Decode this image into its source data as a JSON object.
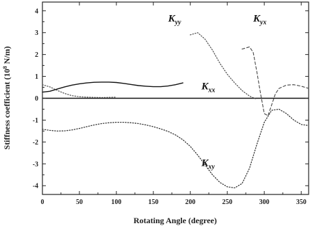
{
  "chart_data": {
    "type": "line",
    "title": "",
    "xlabel": "Rotating Angle (degree)",
    "ylabel_main": "Stiffness coefficient (10",
    "ylabel_exp": "8",
    "ylabel_unit": " N/m)",
    "xlim": [
      0,
      360
    ],
    "ylim": [
      -4.4,
      4.4
    ],
    "xticks": [
      0,
      50,
      100,
      150,
      200,
      250,
      300,
      350
    ],
    "yticks": [
      -4,
      -3,
      -2,
      -1,
      0,
      1,
      2,
      3,
      4
    ],
    "grid": false,
    "legend": "none",
    "series": [
      {
        "label_main": "K",
        "label_sub": "xx",
        "label_at": [
          215,
          0.4
        ],
        "style": "solid",
        "color": "#111111",
        "x": [
          0,
          10,
          20,
          30,
          40,
          50,
          60,
          70,
          80,
          90,
          100,
          110,
          120,
          130,
          140,
          150,
          160,
          170,
          180,
          190,
          200,
          210,
          220,
          230,
          240,
          250,
          260,
          270,
          280,
          290,
          300,
          310,
          320,
          330,
          340,
          350,
          360
        ],
        "y": [
          0.28,
          0.32,
          0.42,
          0.52,
          0.6,
          0.66,
          0.7,
          0.73,
          0.74,
          0.74,
          0.72,
          0.68,
          0.63,
          0.58,
          0.55,
          0.53,
          0.53,
          0.56,
          0.62,
          0.7,
          null,
          null,
          null,
          null,
          null,
          null,
          null,
          null,
          null,
          null,
          null,
          null,
          null,
          null,
          null,
          null,
          null
        ]
      },
      {
        "label_main": "K",
        "label_sub": "yy",
        "label_at": [
          170,
          3.5
        ],
        "style": "dotted",
        "color": "#555555",
        "x": [
          0,
          10,
          20,
          30,
          40,
          50,
          60,
          70,
          80,
          90,
          100,
          110,
          120,
          130,
          140,
          150,
          160,
          170,
          180,
          190,
          200,
          210,
          220,
          230,
          240,
          250,
          260,
          270,
          280,
          290,
          300,
          310,
          320,
          330,
          340,
          350,
          360
        ],
        "y": [
          0.62,
          0.52,
          0.36,
          0.22,
          0.12,
          0.07,
          0.05,
          0.04,
          0.03,
          0.04,
          0.05,
          null,
          null,
          null,
          null,
          null,
          null,
          null,
          null,
          null,
          2.9,
          3.0,
          2.7,
          2.2,
          1.6,
          1.1,
          0.7,
          0.35,
          0.1,
          -0.05,
          null,
          null,
          null,
          null,
          null,
          null,
          null
        ]
      },
      {
        "label_main": "K",
        "label_sub": "yx",
        "label_at": [
          285,
          3.5
        ],
        "style": "dashed",
        "color": "#444444",
        "x": [
          0,
          10,
          20,
          30,
          40,
          50,
          60,
          70,
          80,
          90,
          100,
          110,
          120,
          130,
          140,
          150,
          160,
          170,
          180,
          190,
          200,
          210,
          220,
          230,
          240,
          250,
          260,
          270,
          280,
          285,
          290,
          295,
          300,
          305,
          310,
          315,
          320,
          330,
          340,
          350,
          360
        ],
        "y": [
          null,
          null,
          null,
          null,
          null,
          null,
          null,
          null,
          null,
          null,
          null,
          null,
          null,
          null,
          null,
          null,
          null,
          null,
          null,
          null,
          null,
          null,
          null,
          null,
          null,
          null,
          null,
          2.25,
          2.35,
          2.1,
          1.2,
          0.2,
          -0.7,
          -0.8,
          -0.3,
          0.2,
          0.45,
          0.6,
          0.62,
          0.55,
          0.45
        ]
      },
      {
        "label_main": "K",
        "label_sub": "xy",
        "label_at": [
          215,
          -3.1
        ],
        "style": "dotted",
        "color": "#333333",
        "x": [
          0,
          10,
          20,
          30,
          40,
          50,
          60,
          70,
          80,
          90,
          100,
          110,
          120,
          130,
          140,
          150,
          160,
          170,
          180,
          190,
          200,
          210,
          220,
          230,
          240,
          250,
          260,
          270,
          280,
          290,
          300,
          310,
          320,
          330,
          340,
          350,
          360
        ],
        "y": [
          -1.42,
          -1.47,
          -1.5,
          -1.49,
          -1.45,
          -1.38,
          -1.3,
          -1.22,
          -1.16,
          -1.12,
          -1.1,
          -1.1,
          -1.12,
          -1.16,
          -1.22,
          -1.3,
          -1.4,
          -1.52,
          -1.68,
          -1.9,
          -2.2,
          -2.6,
          -3.05,
          -3.5,
          -3.85,
          -4.05,
          -4.1,
          -3.9,
          -3.2,
          -2.1,
          -1.1,
          -0.55,
          -0.5,
          -0.7,
          -1.0,
          -1.2,
          -1.25
        ]
      }
    ]
  }
}
